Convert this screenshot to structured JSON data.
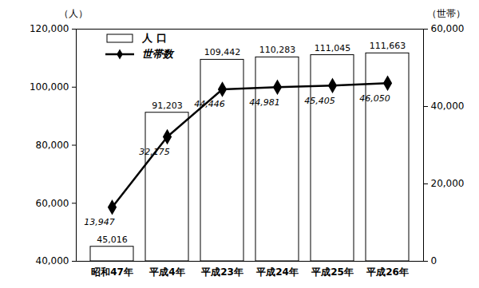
{
  "chart_data": {
    "type": "bar",
    "categories": [
      "昭和47年",
      "平成4年",
      "平成23年",
      "平成24年",
      "平成25年",
      "平成26年"
    ],
    "series": [
      {
        "name": "人 口",
        "type": "bar",
        "color": "#ffffff",
        "values": [
          45016,
          91203,
          109442,
          110283,
          111045,
          111663
        ],
        "value_labels": [
          "45,016",
          "91,203",
          "109,442",
          "110,283",
          "111,045",
          "111,663"
        ]
      },
      {
        "name": "世帯数",
        "type": "line",
        "axis": "y2",
        "color": "#000000",
        "marker": "diamond",
        "values": [
          13947,
          32175,
          44446,
          44981,
          45405,
          46050
        ],
        "value_labels": [
          "13,947",
          "32,175",
          "44,446",
          "44,981",
          "45,405",
          "46,050"
        ]
      }
    ],
    "y_label": "（人）",
    "y2_label": "（世帯）",
    "ylim": [
      40000,
      120000
    ],
    "yticks": [
      {
        "value": 40000,
        "label": "40,000"
      },
      {
        "value": 60000,
        "label": "60,000"
      },
      {
        "value": 80000,
        "label": "80,000"
      },
      {
        "value": 100000,
        "label": "100,000"
      },
      {
        "value": 120000,
        "label": "120,000"
      }
    ],
    "y2lim": [
      0,
      60000
    ],
    "y2ticks": [
      0,
      {
        "value": 20000,
        "label": "20,000"
      },
      {
        "value": 40000,
        "label": "40,000"
      },
      {
        "value": 60000,
        "label": "60,000"
      }
    ],
    "data_labels": true,
    "grid": false,
    "legend": "top-left"
  }
}
